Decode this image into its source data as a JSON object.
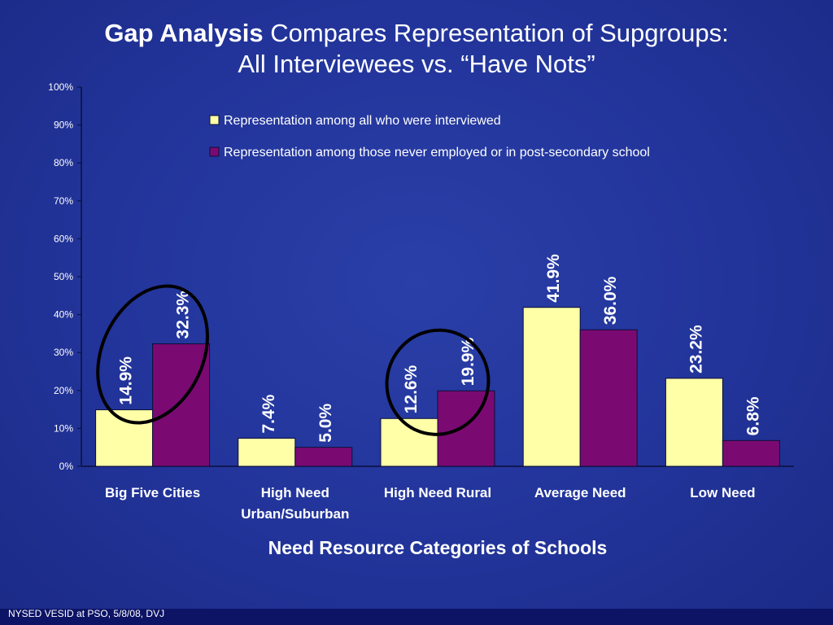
{
  "slide": {
    "title_bold": "Gap Analysis",
    "title_rest": " Compares Representation of Supgroups:",
    "title_line2": "All Interviewees  vs.  “Have Nots”",
    "footer": "NYSED VESID at PSO, 5/8/08, DVJ"
  },
  "colors": {
    "background": "#22349a",
    "series_all": "#ffffa8",
    "series_have_nots": "#7a0a72",
    "highlight_ellipse": "#000000",
    "text": "#ffffff"
  },
  "chart_data": {
    "type": "bar",
    "title": "",
    "xlabel": "Need Resource Categories of Schools",
    "ylabel": "",
    "ylim": [
      0,
      100
    ],
    "yticks": [
      "0%",
      "10%",
      "20%",
      "30%",
      "40%",
      "50%",
      "60%",
      "70%",
      "80%",
      "90%",
      "100%"
    ],
    "categories": [
      [
        "Big Five Cities"
      ],
      [
        "High Need",
        "Urban/Suburban"
      ],
      [
        "High Need Rural"
      ],
      [
        "Average Need"
      ],
      [
        "Low Need"
      ]
    ],
    "series": [
      {
        "name": "Representation among all who were interviewed",
        "values": [
          14.9,
          7.4,
          12.6,
          41.9,
          23.2
        ],
        "labels": [
          "14.9%",
          "7.4%",
          "12.6%",
          "41.9%",
          "23.2%"
        ]
      },
      {
        "name": "Representation among those never employed or in post-secondary school",
        "values": [
          32.3,
          5.0,
          19.9,
          36.0,
          6.8
        ],
        "labels": [
          "32.3%",
          "5.0%",
          "19.9%",
          "36.0%",
          "6.8%"
        ]
      }
    ],
    "legend_position": "top-right",
    "grid": false,
    "highlighted_categories": [
      0,
      2
    ]
  }
}
